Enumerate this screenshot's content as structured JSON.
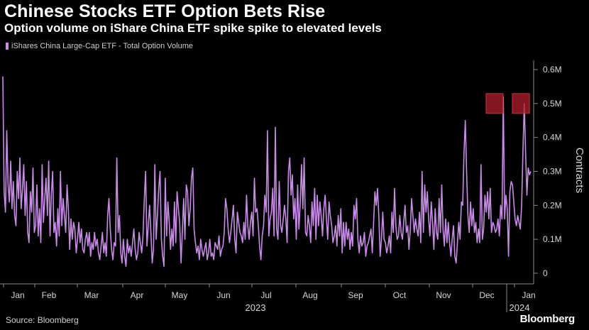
{
  "header": {
    "title": "Chinese Stocks ETF Option Bets Rise",
    "subtitle": "Option volume on iShare China ETF spike spike to elevated levels"
  },
  "footer": {
    "source": "Source: Bloomberg",
    "brand": "Bloomberg"
  },
  "colors": {
    "background": "#000000",
    "line": "#c98be8",
    "highlight_box": "#b01e2a",
    "grid": "#3a3a3a"
  },
  "chart_data": {
    "type": "line",
    "title": "Chinese Stocks ETF Option Bets Rise",
    "subtitle": "Option volume on iShare China ETF spike spike to elevated levels",
    "xlabel": "",
    "ylabel": "Contracts",
    "ylim": [
      0,
      0.6
    ],
    "y_unit": "million contracts",
    "y_ticks": [
      0,
      0.1,
      0.2,
      0.3,
      0.4,
      0.5,
      0.6
    ],
    "y_tick_labels": [
      "0",
      "0.1M",
      "0.2M",
      "0.3M",
      "0.4M",
      "0.5M",
      "0.6M"
    ],
    "x_tick_labels": [
      "Jan",
      "Feb",
      "Mar",
      "Apr",
      "May",
      "Jun",
      "Jul",
      "Aug",
      "Sep",
      "Oct",
      "Nov",
      "Dec",
      "Jan"
    ],
    "x_year_labels": [
      "2023",
      "2024"
    ],
    "grid": false,
    "legend": "top-left",
    "series": [
      {
        "name": "iShares China Large-Cap ETF - Total Option Volume",
        "values": [
          0.58,
          0.24,
          0.18,
          0.42,
          0.26,
          0.21,
          0.33,
          0.19,
          0.27,
          0.17,
          0.14,
          0.3,
          0.22,
          0.34,
          0.19,
          0.25,
          0.32,
          0.17,
          0.27,
          0.12,
          0.09,
          0.24,
          0.18,
          0.31,
          0.12,
          0.14,
          0.26,
          0.11,
          0.19,
          0.09,
          0.32,
          0.15,
          0.22,
          0.28,
          0.17,
          0.33,
          0.11,
          0.23,
          0.3,
          0.12,
          0.15,
          0.08,
          0.19,
          0.11,
          0.3,
          0.14,
          0.22,
          0.17,
          0.12,
          0.26,
          0.19,
          0.07,
          0.16,
          0.1,
          0.15,
          0.13,
          0.06,
          0.1,
          0.15,
          0.09,
          0.13,
          0.07,
          0.06,
          0.1,
          0.12,
          0.08,
          0.12,
          0.05,
          0.09,
          0.07,
          0.12,
          0.08,
          0.1,
          0.06,
          0.04,
          0.08,
          0.12,
          0.06,
          0.09,
          0.05,
          0.17,
          0.22,
          0.13,
          0.07,
          0.04,
          0.09,
          0.08,
          0.34,
          0.12,
          0.17,
          0.06,
          0.03,
          0.1,
          0.05,
          0.02,
          0.1,
          0.06,
          0.08,
          0.05,
          0.09,
          0.13,
          0.07,
          0.04,
          0.06,
          0.12,
          0.09,
          0.06,
          0.11,
          0.22,
          0.3,
          0.08,
          0.14,
          0.2,
          0.12,
          0.03,
          0.07,
          0.32,
          0.1,
          0.17,
          0.25,
          0.3,
          0.1,
          0.05,
          0.02,
          0.28,
          0.11,
          0.21,
          0.15,
          0.07,
          0.13,
          0.08,
          0.21,
          0.09,
          0.24,
          0.19,
          0.15,
          0.03,
          0.12,
          0.22,
          0.1,
          0.26,
          0.24,
          0.14,
          0.19,
          0.28,
          0.31,
          0.13,
          0.09,
          0.06,
          0.08,
          0.04,
          0.1,
          0.07,
          0.05,
          0.07,
          0.09,
          0.04,
          0.06,
          0.1,
          0.05,
          0.06,
          0.04,
          0.09,
          0.08,
          0.07,
          0.11,
          0.05,
          0.07,
          0.08,
          0.12,
          0.22,
          0.19,
          0.13,
          0.09,
          0.12,
          0.16,
          0.2,
          0.1,
          0.06,
          0.18,
          0.15,
          0.12,
          0.11,
          0.09,
          0.15,
          0.1,
          0.23,
          0.14,
          0.1,
          0.15,
          0.18,
          0.11,
          0.28,
          0.18,
          0.19,
          0.14,
          0.08,
          0.04,
          0.11,
          0.14,
          0.23,
          0.18,
          0.42,
          0.11,
          0.16,
          0.18,
          0.25,
          0.11,
          0.43,
          0.13,
          0.1,
          0.27,
          0.14,
          0.12,
          0.16,
          0.2,
          0.16,
          0.09,
          0.3,
          0.34,
          0.23,
          0.29,
          0.16,
          0.22,
          0.1,
          0.26,
          0.13,
          0.21,
          0.32,
          0.19,
          0.34,
          0.12,
          0.11,
          0.17,
          0.14,
          0.09,
          0.21,
          0.14,
          0.25,
          0.1,
          0.23,
          0.14,
          0.21,
          0.17,
          0.11,
          0.19,
          0.23,
          0.16,
          0.1,
          0.21,
          0.17,
          0.14,
          0.09,
          0.11,
          0.14,
          0.08,
          0.17,
          0.11,
          0.19,
          0.06,
          0.15,
          0.08,
          0.15,
          0.1,
          0.13,
          0.07,
          0.12,
          0.08,
          0.2,
          0.16,
          0.22,
          0.1,
          0.06,
          0.11,
          0.08,
          0.09,
          0.12,
          0.05,
          0.08,
          0.09,
          0.11,
          0.13,
          0.06,
          0.15,
          0.24,
          0.2,
          0.25,
          0.17,
          0.05,
          0.1,
          0.18,
          0.1,
          0.09,
          0.06,
          0.08,
          0.11,
          0.06,
          0.18,
          0.12,
          0.25,
          0.14,
          0.1,
          0.11,
          0.17,
          0.12,
          0.1,
          0.15,
          0.2,
          0.12,
          0.14,
          0.07,
          0.13,
          0.22,
          0.17,
          0.12,
          0.16,
          0.13,
          0.11,
          0.18,
          0.09,
          0.3,
          0.12,
          0.26,
          0.18,
          0.24,
          0.16,
          0.11,
          0.21,
          0.15,
          0.07,
          0.19,
          0.12,
          0.1,
          0.22,
          0.12,
          0.26,
          0.13,
          0.08,
          0.16,
          0.09,
          0.15,
          0.09,
          0.05,
          0.1,
          0.14,
          0.05,
          0.03,
          0.09,
          0.15,
          0.1,
          0.21,
          0.2,
          0.35,
          0.45,
          0.3,
          0.17,
          0.12,
          0.21,
          0.14,
          0.19,
          0.12,
          0.15,
          0.09,
          0.13,
          0.09,
          0.32,
          0.1,
          0.13,
          0.23,
          0.18,
          0.24,
          0.16,
          0.25,
          0.12,
          0.15,
          0.14,
          0.12,
          0.13,
          0.16,
          0.11,
          0.2,
          0.16,
          0.52,
          0.16,
          0.23,
          0.19,
          0.05,
          0.24,
          0.27,
          0.26,
          0.21,
          0.16,
          0.14,
          0.17,
          0.15,
          0.13,
          0.2,
          0.36,
          0.5,
          0.36,
          0.23,
          0.31,
          0.29,
          0.3
        ]
      }
    ],
    "highlights": [
      {
        "label": "spike-dec",
        "value": 0.5
      },
      {
        "label": "spike-jan",
        "value": 0.5
      }
    ]
  }
}
